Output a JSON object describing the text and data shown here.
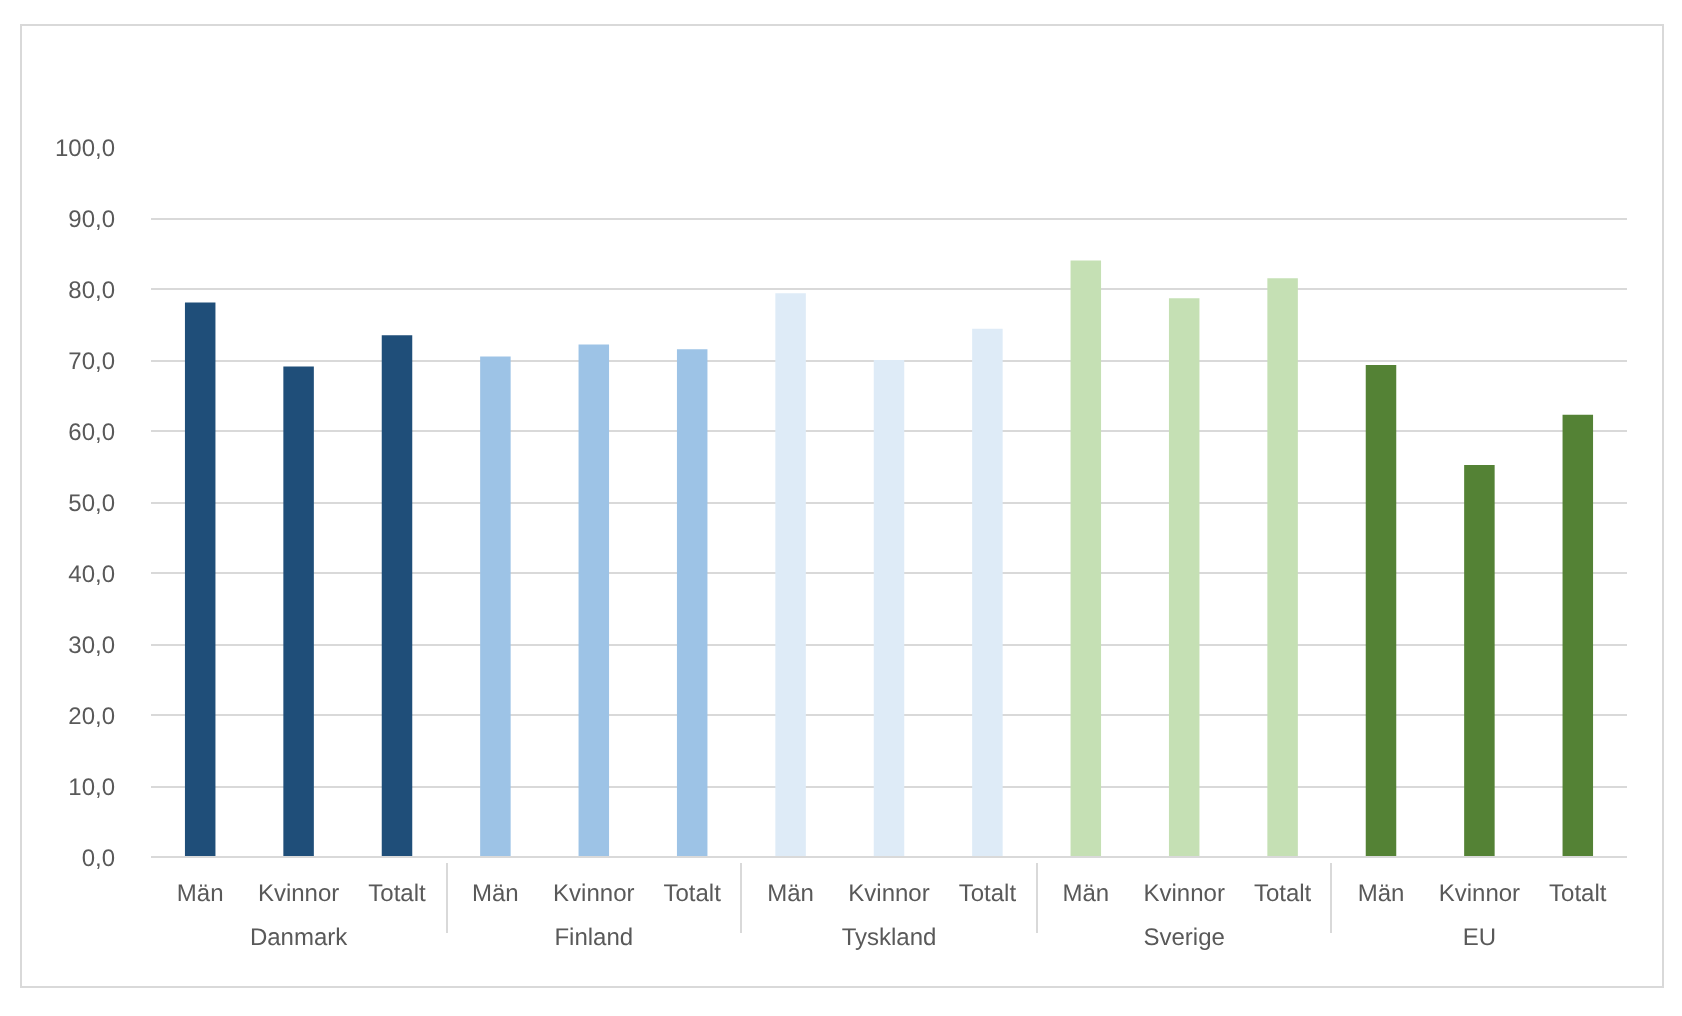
{
  "chart_data": {
    "type": "bar",
    "categories": [
      "Danmark",
      "Finland",
      "Tyskland",
      "Sverige",
      "EU"
    ],
    "series": [
      {
        "name": "Män",
        "colors": [
          "#1f4e79",
          "#9dc3e6",
          "#deebf7",
          "#c5e0b4",
          "#548235"
        ],
        "values": [
          78.1,
          70.5,
          79.4,
          84.0,
          69.3
        ]
      },
      {
        "name": "Kvinnor",
        "colors": [
          "#1f4e79",
          "#9dc3e6",
          "#deebf7",
          "#c5e0b4",
          "#548235"
        ],
        "values": [
          69.1,
          72.2,
          70.0,
          78.7,
          55.2
        ]
      },
      {
        "name": "Totalt",
        "colors": [
          "#1f4e79",
          "#9dc3e6",
          "#deebf7",
          "#c5e0b4",
          "#548235"
        ],
        "values": [
          73.5,
          71.5,
          74.4,
          81.5,
          62.3
        ]
      }
    ],
    "ylim": [
      0,
      100
    ],
    "yticks": [
      {
        "value": 0,
        "label": "0,0"
      },
      {
        "value": 10,
        "label": "10,0"
      },
      {
        "value": 20,
        "label": "20,0"
      },
      {
        "value": 30,
        "label": "30,0"
      },
      {
        "value": 40,
        "label": "40,0"
      },
      {
        "value": 50,
        "label": "50,0"
      },
      {
        "value": 60,
        "label": "60,0"
      },
      {
        "value": 70,
        "label": "70,0"
      },
      {
        "value": 80,
        "label": "80,0"
      },
      {
        "value": 90,
        "label": "90,0"
      },
      {
        "value": 100,
        "label": "100,0"
      }
    ],
    "grid": "y"
  }
}
